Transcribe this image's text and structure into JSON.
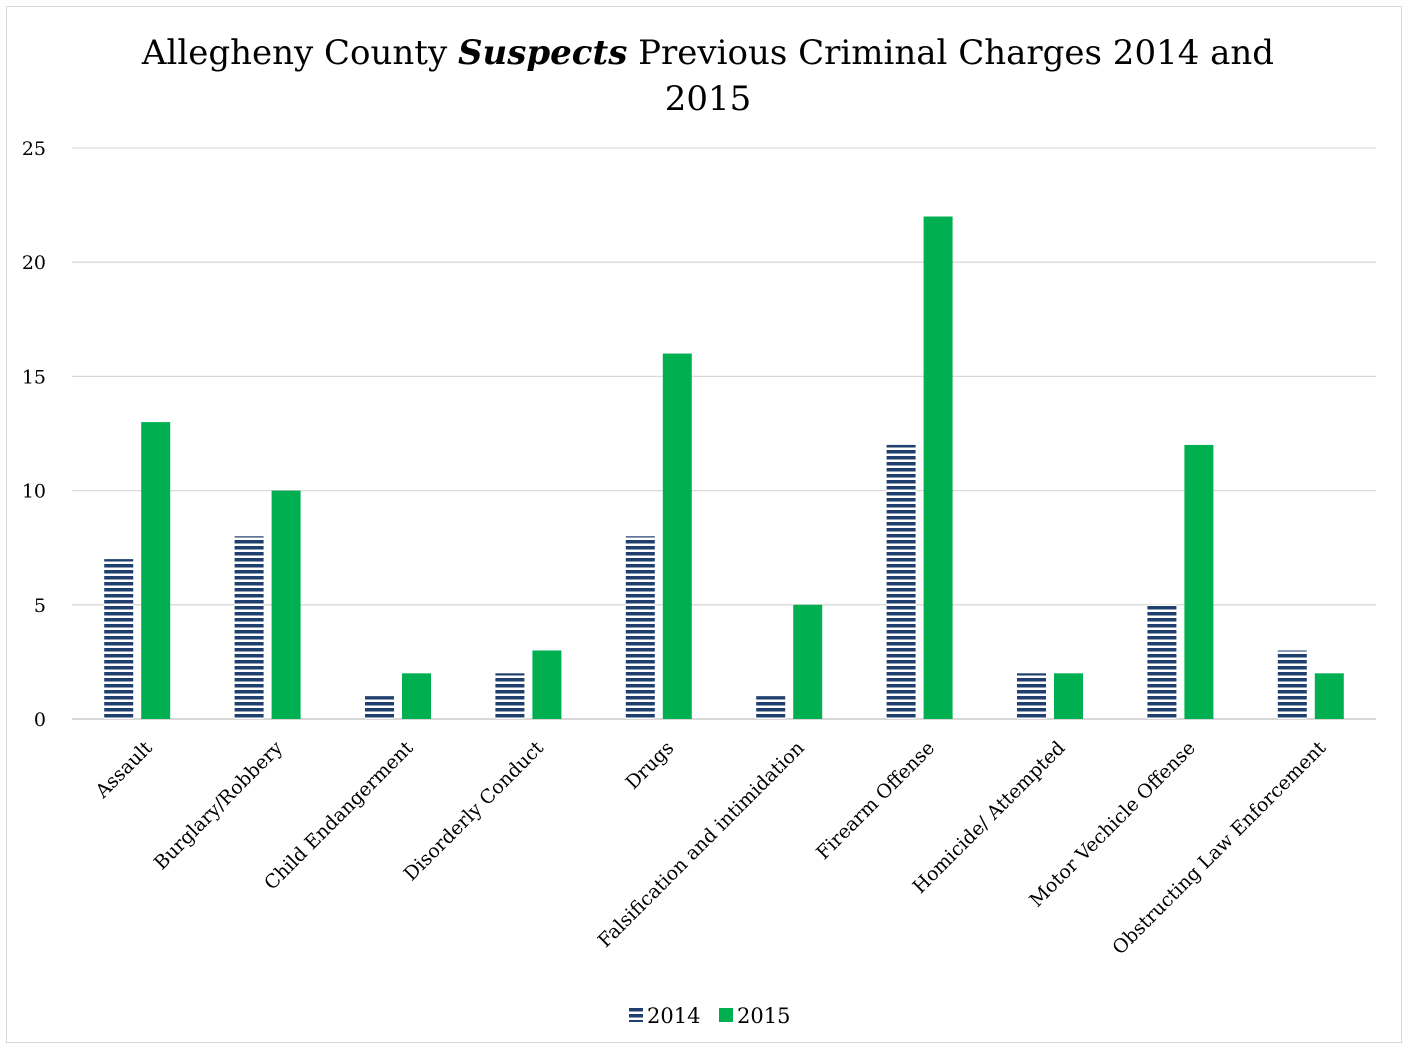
{
  "chart_data": {
    "type": "bar",
    "title_parts": {
      "prefix": "Allegheny County ",
      "emphasis": "Suspects",
      "suffix_line1": " Previous Criminal Charges 2014 and",
      "line2": "2015"
    },
    "categories": [
      "Assault",
      "Burglary/Robbery",
      "Child Endangerment",
      "Disorderly Conduct",
      "Drugs",
      "Falsification and intimidation",
      "Firearm Offense",
      "Homicide/ Attempted",
      "Motor Vechicle Offense",
      "Obstructing Law Enforcement"
    ],
    "series": [
      {
        "name": "2014",
        "color": "#1f3f6e",
        "pattern": "horizontal-stripes",
        "values": [
          7,
          8,
          1,
          2,
          8,
          1,
          12,
          2,
          5,
          3
        ]
      },
      {
        "name": "2015",
        "color": "#00b050",
        "pattern": "solid",
        "values": [
          13,
          10,
          2,
          3,
          16,
          5,
          22,
          2,
          12,
          2
        ]
      }
    ],
    "ylim": [
      0,
      25
    ],
    "yticks": [
      0,
      5,
      10,
      15,
      20,
      25
    ],
    "grid": true,
    "legend": "bottom"
  }
}
